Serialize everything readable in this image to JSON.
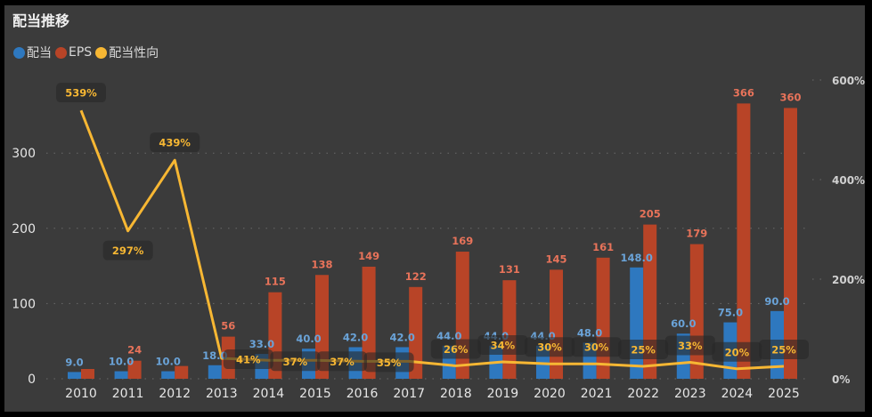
{
  "chart_data": {
    "type": "bar+line",
    "title": "配当推移",
    "legend_position": "top-left",
    "grid": true,
    "categories": [
      "2010",
      "2011",
      "2012",
      "2013",
      "2014",
      "2015",
      "2016",
      "2017",
      "2018",
      "2019",
      "2020",
      "2021",
      "2022",
      "2023",
      "2024",
      "2025"
    ],
    "series": [
      {
        "name": "配当",
        "type": "bar",
        "axis": "left",
        "color": "#2e78bf",
        "values": [
          9.0,
          10.0,
          10.0,
          18.0,
          33.0,
          40.0,
          42.0,
          42.0,
          44.0,
          44.0,
          44.0,
          48.0,
          148.0,
          60.0,
          75.0,
          90.0
        ],
        "labels": [
          "9.0",
          "10.0",
          "10.0",
          "18.0",
          "33.0",
          "40.0",
          "42.0",
          "42.0",
          "44.0",
          "44.0",
          "44.0",
          "48.0",
          "148.0",
          "60.0",
          "75.0",
          "90.0"
        ]
      },
      {
        "name": "EPS",
        "type": "bar",
        "axis": "left",
        "color": "#b84427",
        "values": [
          13,
          24,
          17,
          56,
          115,
          138,
          149,
          122,
          169,
          131,
          145,
          161,
          205,
          179,
          366,
          360
        ],
        "labels": [
          null,
          "24",
          null,
          "56",
          "115",
          "138",
          "149",
          "122",
          "169",
          "131",
          "145",
          "161",
          "205",
          "179",
          "366",
          "360"
        ]
      },
      {
        "name": "配当性向",
        "type": "line",
        "axis": "right",
        "color": "#f7b733",
        "values": [
          539,
          297,
          439,
          41,
          37,
          37,
          35,
          35,
          26,
          34,
          30,
          30,
          25,
          33,
          20,
          25
        ],
        "labels": [
          "539%",
          "297%",
          "439%",
          "41%",
          "37%",
          "37%",
          "35%",
          null,
          "26%",
          "34%",
          "30%",
          "30%",
          "25%",
          "33%",
          "20%",
          "25%"
        ]
      }
    ],
    "y_left": {
      "range": [
        0,
        400
      ],
      "ticks": [
        "0",
        "100",
        "200",
        "300"
      ],
      "tick_values": [
        0,
        100,
        200,
        300
      ]
    },
    "y_right": {
      "range": [
        0,
        600
      ],
      "ticks": [
        "0%",
        "200%",
        "400%",
        "600%"
      ],
      "tick_values": [
        0,
        200,
        400,
        600
      ]
    }
  }
}
